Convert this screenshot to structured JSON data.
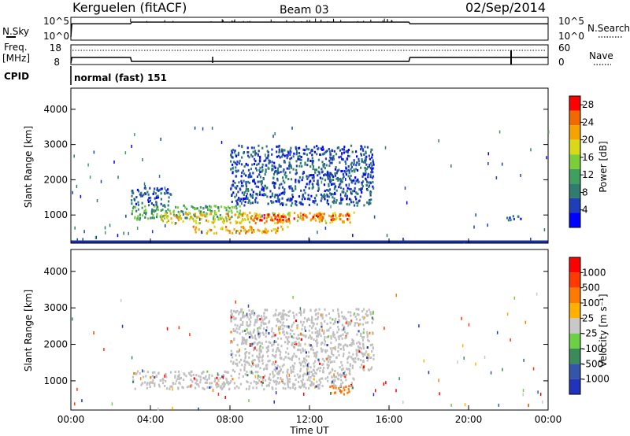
{
  "header": {
    "station": "Kerguelen (fitACF)",
    "beam": "Beam 03",
    "date": "02/Sep/2014"
  },
  "strips": {
    "nsky": {
      "label": "N.Sky",
      "left_ticks": [
        "10^5",
        "10^0"
      ],
      "right_ticks": [
        "10^5",
        "10^0"
      ],
      "right_label": "N.Search"
    },
    "freq": {
      "label_line1": "Freq.",
      "label_line2": "[MHz]",
      "left_ticks": [
        "18",
        "8"
      ],
      "right_ticks": [
        "60",
        "0"
      ],
      "right_label": "Nave"
    },
    "cpid": {
      "label": "CPID",
      "text": "normal (fast) 151"
    }
  },
  "colors": {
    "power_scale": [
      "#0000ff",
      "#1f3fb8",
      "#2e7d6f",
      "#3f9f5f",
      "#7ccd3a",
      "#d9d91a",
      "#f5a300",
      "#f06a00",
      "#ff0000"
    ],
    "velocity_scale": [
      "#2233bb",
      "#3355aa",
      "#3a8a5a",
      "#6ccf44",
      "#c8c8c8",
      "#ffb000",
      "#ff7a00",
      "#ff3a00",
      "#ff0000"
    ],
    "ground_scatter": "#c0c0c0"
  },
  "chart_data": [
    {
      "type": "line",
      "panel": "N.Sky / N.Search",
      "x_unit": "hours UT",
      "series": [
        {
          "name": "N.Sky",
          "x": [
            0.0,
            0.05,
            3.0,
            3.05,
            17.0,
            17.05,
            24.0
          ],
          "y_log10": [
            0.0,
            4.0,
            4.0,
            4.5,
            4.5,
            4.0,
            4.0
          ]
        }
      ]
    },
    {
      "type": "line",
      "panel": "Freq. / Nave",
      "x_unit": "hours UT",
      "series": [
        {
          "name": "Freq. [MHz]",
          "x": [
            0.0,
            0.05,
            3.0,
            3.05,
            17.0,
            17.05,
            24.0
          ],
          "y": [
            8,
            14,
            14,
            12,
            12,
            14,
            14
          ]
        },
        {
          "name": "Nave",
          "x": [
            0,
            24
          ],
          "y": [
            30,
            30
          ],
          "style": "dotted"
        }
      ]
    },
    {
      "type": "heatmap",
      "panel": "Power",
      "xlabel": "",
      "ylabel": "Slant Range [km]",
      "xlim": [
        0,
        24
      ],
      "ylim": [
        200,
        4600
      ],
      "yticks": [
        1000,
        2000,
        3000,
        4000
      ],
      "colorbar": {
        "label": "Power [dB]",
        "ticks": [
          4,
          8,
          12,
          16,
          20,
          24,
          28
        ],
        "range": [
          0,
          30
        ]
      },
      "blobs": [
        {
          "t": [
            3.0,
            8.5
          ],
          "r": [
            900,
            1300
          ],
          "value": 12
        },
        {
          "t": [
            3.0,
            5.0
          ],
          "r": [
            1300,
            1800
          ],
          "value": 6
        },
        {
          "t": [
            4.5,
            14.2
          ],
          "r": [
            800,
            1100
          ],
          "value": 20
        },
        {
          "t": [
            9.0,
            14.0
          ],
          "r": [
            850,
            1050
          ],
          "value": 26
        },
        {
          "t": [
            8.0,
            15.2
          ],
          "r": [
            1300,
            3000
          ],
          "value": 6
        },
        {
          "t": [
            6.0,
            11.0
          ],
          "r": [
            500,
            700
          ],
          "value": 22
        },
        {
          "t": [
            21.8,
            22.6
          ],
          "r": [
            850,
            1000
          ],
          "value": 6
        }
      ]
    },
    {
      "type": "heatmap",
      "panel": "Velocity",
      "xlabel": "Time UT",
      "ylabel": "Slant Range [km]",
      "xlim": [
        0,
        24
      ],
      "ylim": [
        200,
        4600
      ],
      "yticks": [
        1000,
        2000,
        3000,
        4000
      ],
      "xticks": [
        "00:00",
        "04:00",
        "08:00",
        "12:00",
        "16:00",
        "20:00",
        "00:00"
      ],
      "colorbar": {
        "label": "Velocity [m s⁻¹]",
        "ticks": [
          "1000",
          "500",
          "100",
          "25",
          "-25",
          "-100",
          "-500",
          "-1000"
        ]
      },
      "blobs": [
        {
          "t": [
            3.0,
            14.2
          ],
          "r": [
            800,
            1300
          ],
          "value": 0
        },
        {
          "t": [
            8.0,
            15.2
          ],
          "r": [
            1300,
            3000
          ],
          "value": 0
        },
        {
          "t": [
            13.0,
            14.0
          ],
          "r": [
            650,
            900
          ],
          "value": -300
        }
      ]
    }
  ]
}
